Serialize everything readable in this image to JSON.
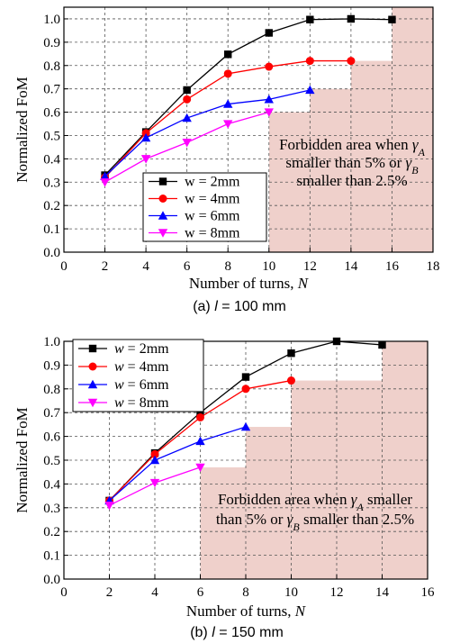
{
  "chart_data": [
    {
      "type": "line",
      "caption_prefix": "(a) ",
      "caption_italic": "l",
      "caption_suffix": " = 100 mm",
      "xlabel_text": "Number of turns, ",
      "xlabel_italic": "N",
      "ylabel": "Normalized FoM",
      "xlim": [
        0,
        18
      ],
      "ylim": [
        0.0,
        1.05
      ],
      "x_ticks": [
        "0",
        "2",
        "4",
        "6",
        "8",
        "10",
        "12",
        "14",
        "16",
        "18"
      ],
      "y_ticks": [
        "0.0",
        "0.1",
        "0.2",
        "0.3",
        "0.4",
        "0.5",
        "0.6",
        "0.7",
        "0.8",
        "0.9",
        "1.0"
      ],
      "grid": true,
      "legend_position": "bottom-center",
      "legend_var_italic": false,
      "series": [
        {
          "name": "w = 2mm",
          "var": "w",
          "rest": " = 2mm",
          "color": "#000000",
          "marker": "square",
          "x": [
            2,
            4,
            6,
            8,
            10,
            12,
            14,
            16
          ],
          "y": [
            0.33,
            0.515,
            0.695,
            0.848,
            0.94,
            0.997,
            1.0,
            0.997
          ]
        },
        {
          "name": "w = 4mm",
          "var": "w",
          "rest": " = 4mm",
          "color": "#ff0000",
          "marker": "circle",
          "x": [
            2,
            4,
            6,
            8,
            10,
            12,
            14
          ],
          "y": [
            0.32,
            0.51,
            0.655,
            0.765,
            0.795,
            0.82,
            0.82
          ]
        },
        {
          "name": "w = 6mm",
          "var": "w",
          "rest": " = 6mm",
          "color": "#0000ff",
          "marker": "triangle-up",
          "x": [
            2,
            4,
            6,
            8,
            10,
            12
          ],
          "y": [
            0.325,
            0.49,
            0.575,
            0.635,
            0.655,
            0.695
          ]
        },
        {
          "name": "w = 8mm",
          "var": "w",
          "rest": " = 8mm",
          "color": "#ff00ff",
          "marker": "triangle-down",
          "x": [
            2,
            4,
            6,
            8,
            10
          ],
          "y": [
            0.3,
            0.4,
            0.47,
            0.55,
            0.6
          ]
        }
      ],
      "forbidden_region": {
        "color": "#efd0cb",
        "steps": [
          {
            "x_from": 10,
            "x_to": 12,
            "y_top": 0.6
          },
          {
            "x_from": 12,
            "x_to": 14,
            "y_top": 0.7
          },
          {
            "x_from": 14,
            "x_to": 16,
            "y_top": 0.82
          },
          {
            "x_from": 16,
            "x_to": 18,
            "y_top": 1.05
          }
        ]
      },
      "annotation_lines": [
        [
          {
            "t": "Forbidden area when "
          },
          {
            "t": "γ",
            "i": true
          },
          {
            "t": "A",
            "i": true,
            "sub": true
          }
        ],
        [
          {
            "t": "smaller than 5% or "
          },
          {
            "t": "γ",
            "i": true
          },
          {
            "t": "B",
            "i": true,
            "sub": true
          }
        ],
        [
          {
            "t": "smaller than 2.5%"
          }
        ]
      ]
    },
    {
      "type": "line",
      "caption_prefix": "(b) ",
      "caption_italic": "l",
      "caption_suffix": " = 150 mm",
      "xlabel_text": "Number of turns, ",
      "xlabel_italic": "N",
      "ylabel": "Normalized FoM",
      "xlim": [
        0,
        16
      ],
      "ylim": [
        0.0,
        1.0
      ],
      "x_ticks": [
        "0",
        "2",
        "4",
        "6",
        "8",
        "10",
        "12",
        "14",
        "16"
      ],
      "y_ticks": [
        "0.0",
        "0.1",
        "0.2",
        "0.3",
        "0.4",
        "0.5",
        "0.6",
        "0.7",
        "0.8",
        "0.9",
        "1.0"
      ],
      "grid": true,
      "legend_position": "top-left",
      "legend_var_italic": true,
      "series": [
        {
          "name": "w = 2mm",
          "var": "w",
          "rest": " = 2mm",
          "color": "#000000",
          "marker": "square",
          "x": [
            2,
            4,
            6,
            8,
            10,
            12,
            14
          ],
          "y": [
            0.33,
            0.53,
            0.7,
            0.85,
            0.95,
            1.0,
            0.985
          ]
        },
        {
          "name": "w = 4mm",
          "var": "w",
          "rest": " = 4mm",
          "color": "#ff0000",
          "marker": "circle",
          "x": [
            2,
            4,
            6,
            8,
            10
          ],
          "y": [
            0.33,
            0.525,
            0.68,
            0.8,
            0.835
          ]
        },
        {
          "name": "w = 6mm",
          "var": "w",
          "rest": " = 6mm",
          "color": "#0000ff",
          "marker": "triangle-up",
          "x": [
            2,
            4,
            6,
            8
          ],
          "y": [
            0.33,
            0.5,
            0.58,
            0.64
          ]
        },
        {
          "name": "w = 8mm",
          "var": "w",
          "rest": " = 8mm",
          "color": "#ff00ff",
          "marker": "triangle-down",
          "x": [
            2,
            4,
            6
          ],
          "y": [
            0.31,
            0.405,
            0.47
          ]
        }
      ],
      "forbidden_region": {
        "color": "#efd0cb",
        "steps": [
          {
            "x_from": 6,
            "x_to": 8,
            "y_top": 0.47
          },
          {
            "x_from": 8,
            "x_to": 10,
            "y_top": 0.64
          },
          {
            "x_from": 10,
            "x_to": 14,
            "y_top": 0.835
          },
          {
            "x_from": 14,
            "x_to": 16,
            "y_top": 1.0
          }
        ]
      },
      "annotation_lines": [
        [
          {
            "t": "Forbidden area when "
          },
          {
            "t": "γ",
            "i": true
          },
          {
            "t": "A",
            "i": true,
            "sub": true
          },
          {
            "t": " smaller"
          }
        ],
        [
          {
            "t": "than 5% or "
          },
          {
            "t": "γ",
            "i": true
          },
          {
            "t": "B",
            "i": true,
            "sub": true
          },
          {
            "t": " smaller than 2.5%"
          }
        ]
      ]
    }
  ]
}
